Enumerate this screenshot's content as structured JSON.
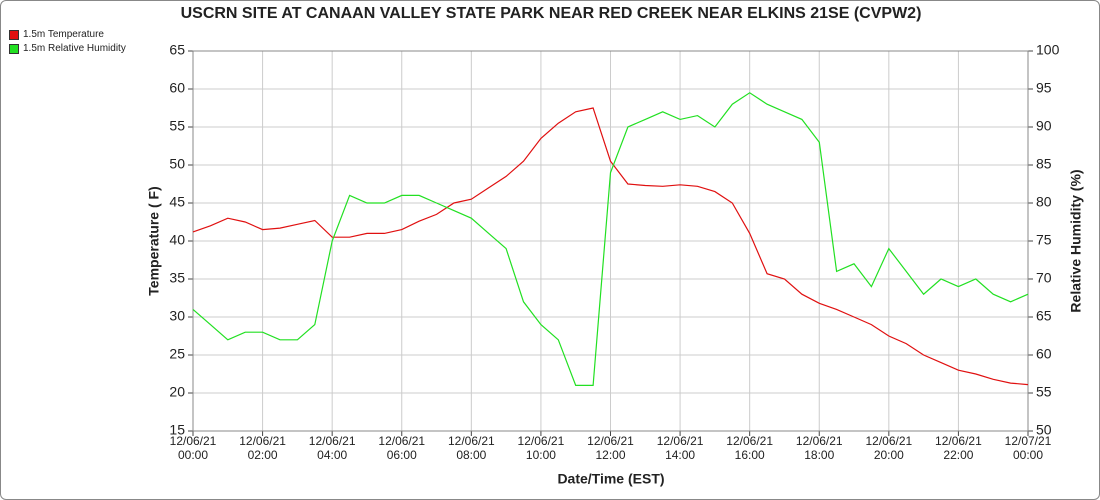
{
  "chart_data": {
    "type": "line",
    "title": "USCRN SITE AT CANAAN VALLEY STATE PARK NEAR RED CREEK NEAR ELKINS 21SE (CVPW2)",
    "x_label": "Date/Time (EST)",
    "y_label": "Temperature ( F)",
    "y2_label": "Relative Humidity (%)",
    "x": [
      "12/06/21 00:00",
      "12/06/21 00:30",
      "12/06/21 01:00",
      "12/06/21 01:30",
      "12/06/21 02:00",
      "12/06/21 02:30",
      "12/06/21 03:00",
      "12/06/21 03:30",
      "12/06/21 04:00",
      "12/06/21 04:30",
      "12/06/21 05:00",
      "12/06/21 05:30",
      "12/06/21 06:00",
      "12/06/21 06:30",
      "12/06/21 07:00",
      "12/06/21 07:30",
      "12/06/21 08:00",
      "12/06/21 08:30",
      "12/06/21 09:00",
      "12/06/21 09:30",
      "12/06/21 10:00",
      "12/06/21 10:30",
      "12/06/21 11:00",
      "12/06/21 11:30",
      "12/06/21 12:00",
      "12/06/21 12:30",
      "12/06/21 13:00",
      "12/06/21 13:30",
      "12/06/21 14:00",
      "12/06/21 14:30",
      "12/06/21 15:00",
      "12/06/21 15:30",
      "12/06/21 16:00",
      "12/06/21 16:30",
      "12/06/21 17:00",
      "12/06/21 17:30",
      "12/06/21 18:00",
      "12/06/21 18:30",
      "12/06/21 19:00",
      "12/06/21 19:30",
      "12/06/21 20:00",
      "12/06/21 20:30",
      "12/06/21 21:00",
      "12/06/21 21:30",
      "12/06/21 22:00",
      "12/06/21 22:30",
      "12/06/21 23:00",
      "12/06/21 23:30",
      "12/07/21 00:00"
    ],
    "series": [
      {
        "name": "1.5m Temperature",
        "color": "#e01010",
        "axis": "y",
        "values": [
          41.2,
          42,
          43,
          42.5,
          41.5,
          41.7,
          42.2,
          42.7,
          40.5,
          40.5,
          41,
          41,
          41.5,
          42.6,
          43.5,
          45,
          45.5,
          47,
          48.5,
          50.5,
          53.5,
          55.5,
          57,
          57.5,
          50.5,
          47.5,
          47.3,
          47.2,
          47.4,
          47.2,
          46.5,
          45,
          41,
          35.7,
          35,
          33,
          31.8,
          31,
          30,
          29,
          27.5,
          26.5,
          25,
          24,
          23,
          22.5,
          21.8,
          21.3,
          21.1
        ]
      },
      {
        "name": "1.5m Relative Humidity",
        "color": "#22e022",
        "axis": "y2",
        "values": [
          66,
          64,
          62,
          63,
          63,
          62,
          62,
          64,
          75,
          81,
          80,
          80,
          81,
          81,
          80,
          79,
          78,
          76,
          74,
          67,
          64,
          62,
          56,
          56,
          84,
          90,
          91,
          92,
          91,
          91.5,
          90,
          93,
          94.5,
          93,
          92,
          91,
          88,
          71,
          72,
          69,
          74,
          71,
          68,
          70,
          69,
          70,
          68,
          67,
          68
        ]
      }
    ],
    "xticks": [
      "12/06/21 00:00",
      "12/06/21 02:00",
      "12/06/21 04:00",
      "12/06/21 06:00",
      "12/06/21 08:00",
      "12/06/21 10:00",
      "12/06/21 12:00",
      "12/06/21 14:00",
      "12/06/21 16:00",
      "12/06/21 18:00",
      "12/06/21 20:00",
      "12/06/21 22:00",
      "12/07/21 00:00"
    ],
    "ylim": [
      15,
      65
    ],
    "yticks": [
      15,
      20,
      25,
      30,
      35,
      40,
      45,
      50,
      55,
      60,
      65
    ],
    "y2lim": [
      50,
      100
    ],
    "y2ticks": [
      50,
      55,
      60,
      65,
      70,
      75,
      80,
      85,
      90,
      95,
      100
    ],
    "grid": true
  }
}
